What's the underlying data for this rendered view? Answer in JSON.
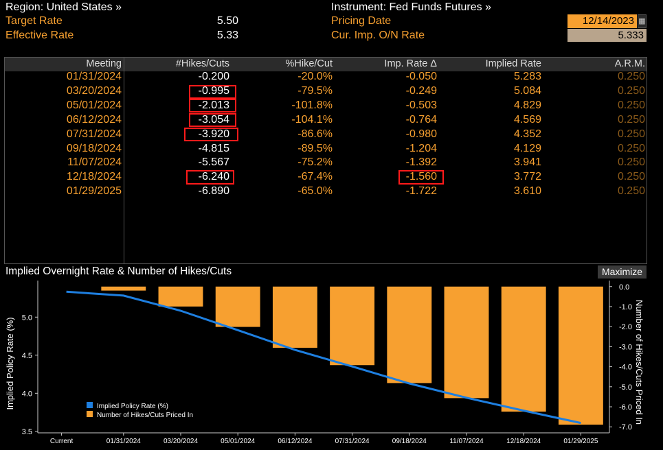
{
  "header": {
    "region_label": "Region: United States »",
    "instrument_label": "Instrument: Fed Funds Futures »",
    "target_rate_label": "Target Rate",
    "target_rate_value": "5.50",
    "effective_rate_label": "Effective Rate",
    "effective_rate_value": "5.33",
    "pricing_date_label": "Pricing Date",
    "pricing_date_value": "12/14/2023",
    "cur_imp_label": "Cur. Imp. O/N Rate",
    "cur_imp_value": "5.333"
  },
  "table": {
    "columns": [
      "Meeting",
      "#Hikes/Cuts",
      "%Hike/Cut",
      "Imp. Rate Δ",
      "Implied Rate",
      "A.R.M."
    ],
    "rows": [
      {
        "meeting": "01/31/2024",
        "hikes": "-0.200",
        "pct": "-20.0%",
        "imp": "-0.050",
        "implied": "5.283",
        "arm": "0.250"
      },
      {
        "meeting": "03/20/2024",
        "hikes": "-0.995",
        "pct": "-79.5%",
        "imp": "-0.249",
        "implied": "5.084",
        "arm": "0.250"
      },
      {
        "meeting": "05/01/2024",
        "hikes": "-2.013",
        "pct": "-101.8%",
        "imp": "-0.503",
        "implied": "4.829",
        "arm": "0.250"
      },
      {
        "meeting": "06/12/2024",
        "hikes": "-3.054",
        "pct": "-104.1%",
        "imp": "-0.764",
        "implied": "4.569",
        "arm": "0.250"
      },
      {
        "meeting": "07/31/2024",
        "hikes": "-3.920",
        "pct": "-86.6%",
        "imp": "-0.980",
        "implied": "4.352",
        "arm": "0.250"
      },
      {
        "meeting": "09/18/2024",
        "hikes": "-4.815",
        "pct": "-89.5%",
        "imp": "-1.204",
        "implied": "4.129",
        "arm": "0.250"
      },
      {
        "meeting": "11/07/2024",
        "hikes": "-5.567",
        "pct": "-75.2%",
        "imp": "-1.392",
        "implied": "3.941",
        "arm": "0.250"
      },
      {
        "meeting": "12/18/2024",
        "hikes": "-6.240",
        "pct": "-67.4%",
        "imp": "-1.560",
        "implied": "3.772",
        "arm": "0.250"
      },
      {
        "meeting": "01/29/2025",
        "hikes": "-6.890",
        "pct": "-65.0%",
        "imp": "-1.722",
        "implied": "3.610",
        "arm": "0.250"
      }
    ]
  },
  "chart_title": "Implied Overnight Rate & Number of Hikes/Cuts",
  "maximize_label": "Maximize",
  "colors": {
    "bar": "#f7a030",
    "line": "#1e7fe0",
    "accent": "#f7a030",
    "highlight": "#ff1a1a"
  },
  "chart_data": {
    "type": "bar",
    "categories": [
      "Current",
      "01/31/2024",
      "03/20/2024",
      "05/01/2024",
      "06/12/2024",
      "07/31/2024",
      "09/18/2024",
      "11/07/2024",
      "12/18/2024",
      "01/29/2025"
    ],
    "series": [
      {
        "name": "Implied Policy Rate (%)",
        "type": "line",
        "axis": "left",
        "values": [
          5.333,
          5.283,
          5.084,
          4.829,
          4.569,
          4.352,
          4.129,
          3.941,
          3.772,
          3.61
        ]
      },
      {
        "name": "Number of Hikes/Cuts Priced In",
        "type": "bar",
        "axis": "right",
        "values": [
          0,
          -0.2,
          -0.995,
          -2.013,
          -3.054,
          -3.92,
          -4.815,
          -5.567,
          -6.24,
          -6.89
        ]
      }
    ],
    "ylabel_left": "Implied Policy Rate (%)",
    "ylabel_right": "Number of Hikes/Cuts Priced In",
    "yticks_left": [
      "5.0",
      "4.5",
      "4.0",
      "3.5"
    ],
    "yticks_right": [
      "0.0",
      "-1.0",
      "-2.0",
      "-3.0",
      "-4.0",
      "-5.0",
      "-6.0",
      "-7.0"
    ],
    "ylim_left": [
      3.48,
      5.48
    ],
    "ylim_right": [
      -7.3,
      0.3
    ],
    "legend": "bottom-left",
    "grid": false
  }
}
